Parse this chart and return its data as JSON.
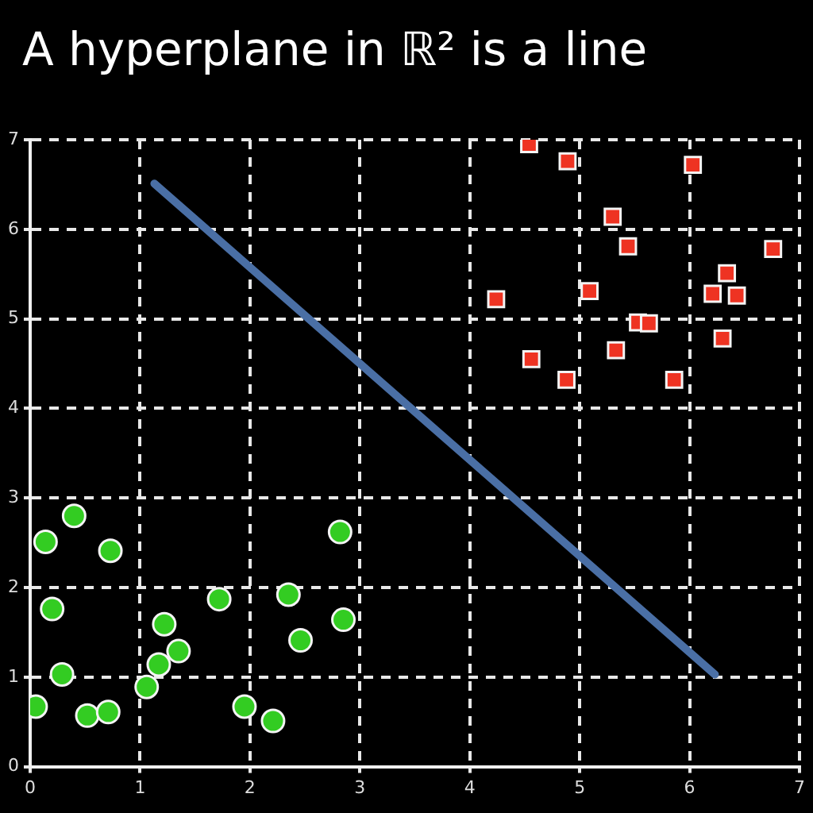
{
  "chart_data": {
    "type": "scatter",
    "title": "A hyperplane in ℝ² is a line",
    "xlim": [
      0,
      7
    ],
    "ylim": [
      0,
      7
    ],
    "xticks": [
      0,
      1,
      2,
      3,
      4,
      5,
      6,
      7
    ],
    "yticks": [
      0,
      1,
      2,
      3,
      4,
      5,
      6,
      7
    ],
    "grid": true,
    "legend": false,
    "series": [
      {
        "type": "scatter",
        "color": "#33cc22",
        "marker": "circle",
        "x": [
          0.4,
          0.14,
          0.73,
          0.2,
          0.29,
          0.05,
          0.52,
          0.71,
          1.06,
          1.17,
          1.22,
          1.35,
          1.72,
          1.95,
          2.21,
          2.35,
          2.46,
          2.82,
          2.85
        ],
        "values": [
          2.8,
          2.51,
          2.41,
          1.76,
          1.03,
          0.67,
          0.57,
          0.61,
          0.89,
          1.14,
          1.59,
          1.29,
          1.87,
          0.67,
          0.51,
          1.92,
          1.41,
          2.62,
          1.64
        ]
      },
      {
        "type": "scatter",
        "color": "#ee3322",
        "marker": "square",
        "x": [
          4.54,
          4.89,
          6.03,
          5.3,
          5.44,
          6.76,
          6.34,
          4.24,
          5.09,
          6.21,
          6.43,
          5.53,
          5.63,
          6.3,
          4.56,
          5.33,
          4.88,
          5.86
        ],
        "values": [
          6.95,
          6.76,
          6.72,
          6.14,
          5.81,
          5.78,
          5.51,
          5.22,
          5.31,
          5.28,
          5.26,
          4.96,
          4.95,
          4.78,
          4.55,
          4.65,
          4.32,
          4.32
        ]
      },
      {
        "type": "line",
        "color": "#4a6fa5",
        "marker": "none",
        "x": [
          1.13,
          6.23
        ],
        "values": [
          6.51,
          1.03
        ]
      }
    ]
  }
}
